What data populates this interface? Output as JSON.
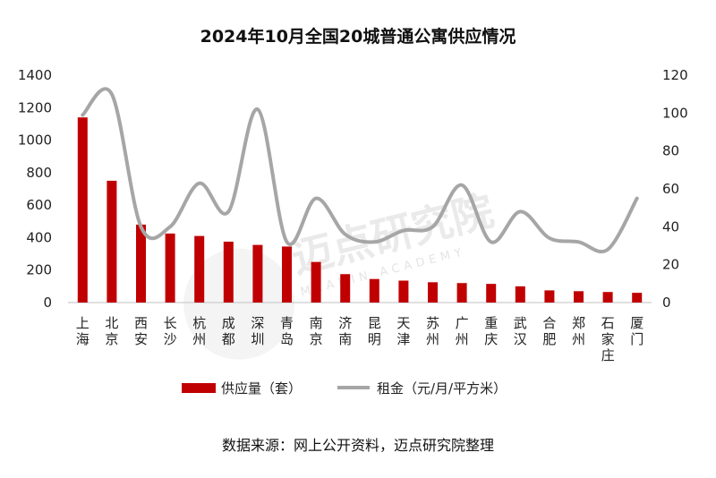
{
  "chart_data": {
    "type": "bar+line",
    "title": "2024年10月全国20城普通公寓供应情况",
    "categories": [
      "上海",
      "北京",
      "西安",
      "长沙",
      "杭州",
      "成都",
      "深圳",
      "青岛",
      "南京",
      "济南",
      "昆明",
      "天津",
      "苏州",
      "广州",
      "重庆",
      "武汉",
      "合肥",
      "郑州",
      "石家庄",
      "厦门"
    ],
    "series": [
      {
        "name": "供应量（套）",
        "type": "bar",
        "axis": "left",
        "color": "#c00000",
        "values": [
          1140,
          750,
          480,
          425,
          410,
          375,
          355,
          345,
          250,
          175,
          145,
          135,
          125,
          120,
          115,
          100,
          75,
          70,
          65,
          60
        ]
      },
      {
        "name": "租金（元/月/平方米）",
        "type": "line",
        "axis": "right",
        "color": "#a6a6a6",
        "values": [
          99,
          110,
          40,
          40,
          63,
          48,
          102,
          32,
          55,
          36,
          32,
          38,
          40,
          62,
          32,
          48,
          34,
          32,
          28,
          55
        ]
      }
    ],
    "y_left": {
      "min": 0,
      "max": 1400,
      "ticks": [
        0,
        200,
        400,
        600,
        800,
        1000,
        1200,
        1400
      ]
    },
    "y_right": {
      "min": 0,
      "max": 120,
      "ticks": [
        0,
        20,
        40,
        60,
        80,
        100,
        120
      ]
    },
    "legend_position": "bottom",
    "grid": false
  },
  "watermark": {
    "text": "迈点研究院",
    "subtext": "MEADIN ACADEMY"
  },
  "source": "数据来源：网上公开资料，迈点研究院整理"
}
